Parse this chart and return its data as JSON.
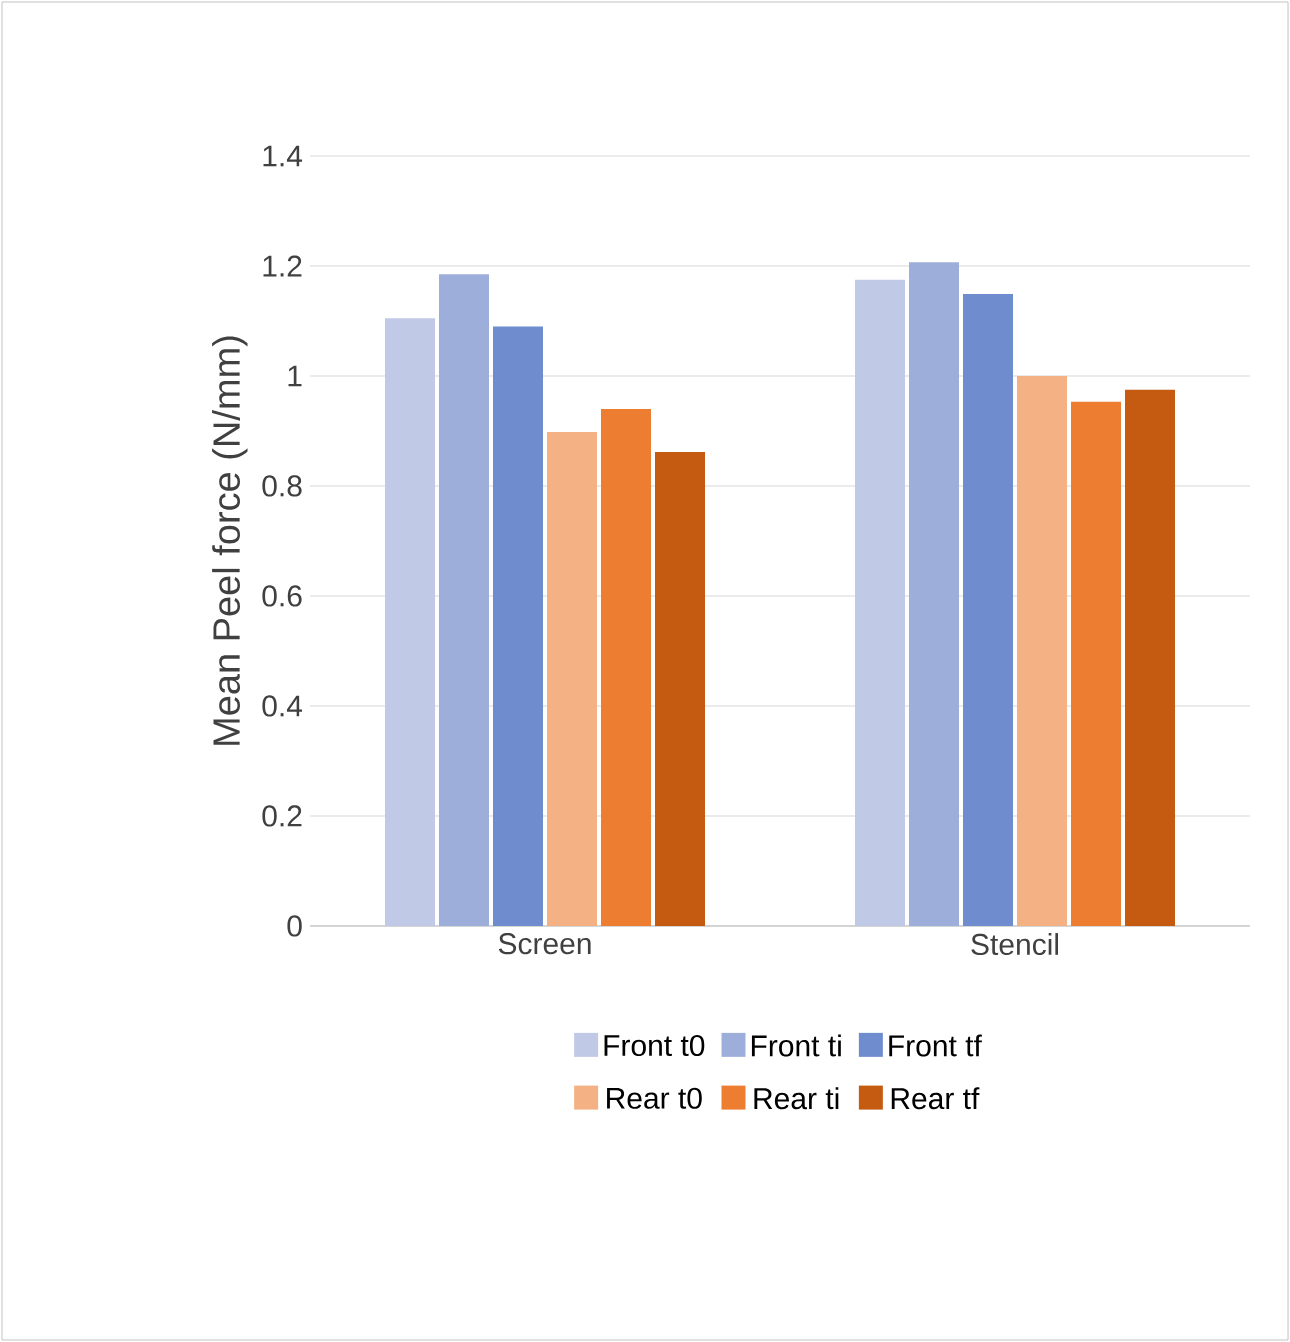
{
  "chart_data": {
    "type": "bar",
    "ylabel": "Mean Peel force (N/mm)",
    "categories": [
      "Screen",
      "Stencil"
    ],
    "series": [
      {
        "name": "Front t0",
        "color": "#c0c9e5",
        "values": [
          1.105,
          1.175
        ]
      },
      {
        "name": "Front ti",
        "color": "#9eaedb",
        "values": [
          1.185,
          1.207
        ]
      },
      {
        "name": "Front tf",
        "color": "#6f8ccf",
        "values": [
          1.09,
          1.149
        ]
      },
      {
        "name": "Rear t0",
        "color": "#f4b183",
        "values": [
          0.898,
          1.0
        ]
      },
      {
        "name": "Rear ti",
        "color": "#ed7d31",
        "values": [
          0.94,
          0.953
        ]
      },
      {
        "name": "Rear tf",
        "color": "#c55a11",
        "values": [
          0.862,
          0.975
        ]
      }
    ],
    "ylim": [
      0,
      1.4
    ],
    "yticks": [
      0,
      0.2,
      0.4,
      0.6,
      0.8,
      1,
      1.2,
      1.4
    ],
    "grid": "y",
    "legend": "bottom"
  }
}
